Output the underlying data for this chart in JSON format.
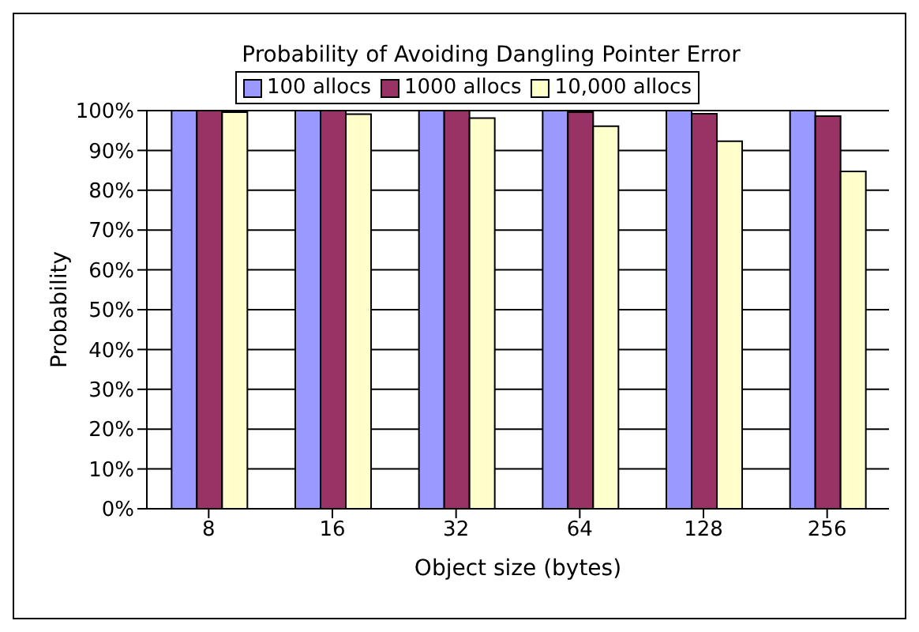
{
  "chart_data": {
    "type": "bar",
    "title": "Probability of Avoiding Dangling Pointer Error",
    "xlabel": "Object size (bytes)",
    "ylabel": "Probability",
    "categories": [
      "8",
      "16",
      "32",
      "64",
      "128",
      "256"
    ],
    "series": [
      {
        "name": "100 allocs",
        "color": "#9999ff",
        "values": [
          100,
          100,
          100,
          100,
          100,
          100
        ]
      },
      {
        "name": "1000 allocs",
        "color": "#993366",
        "values": [
          100,
          100,
          100,
          99.6,
          99.2,
          98.6
        ]
      },
      {
        "name": "10,000 allocs",
        "color": "#ffffcc",
        "values": [
          99.6,
          99.1,
          98.1,
          96.1,
          92.3,
          84.7
        ]
      }
    ],
    "ylim": [
      0,
      100
    ],
    "yticks": [
      {
        "value": 0,
        "label": "0%"
      },
      {
        "value": 10,
        "label": "10%"
      },
      {
        "value": 20,
        "label": "20%"
      },
      {
        "value": 30,
        "label": "30%"
      },
      {
        "value": 40,
        "label": "40%"
      },
      {
        "value": 50,
        "label": "50%"
      },
      {
        "value": 60,
        "label": "60%"
      },
      {
        "value": 70,
        "label": "70%"
      },
      {
        "value": 80,
        "label": "80%"
      },
      {
        "value": 90,
        "label": "90%"
      },
      {
        "value": 100,
        "label": "100%"
      }
    ],
    "grid": "y",
    "legend": "top"
  }
}
